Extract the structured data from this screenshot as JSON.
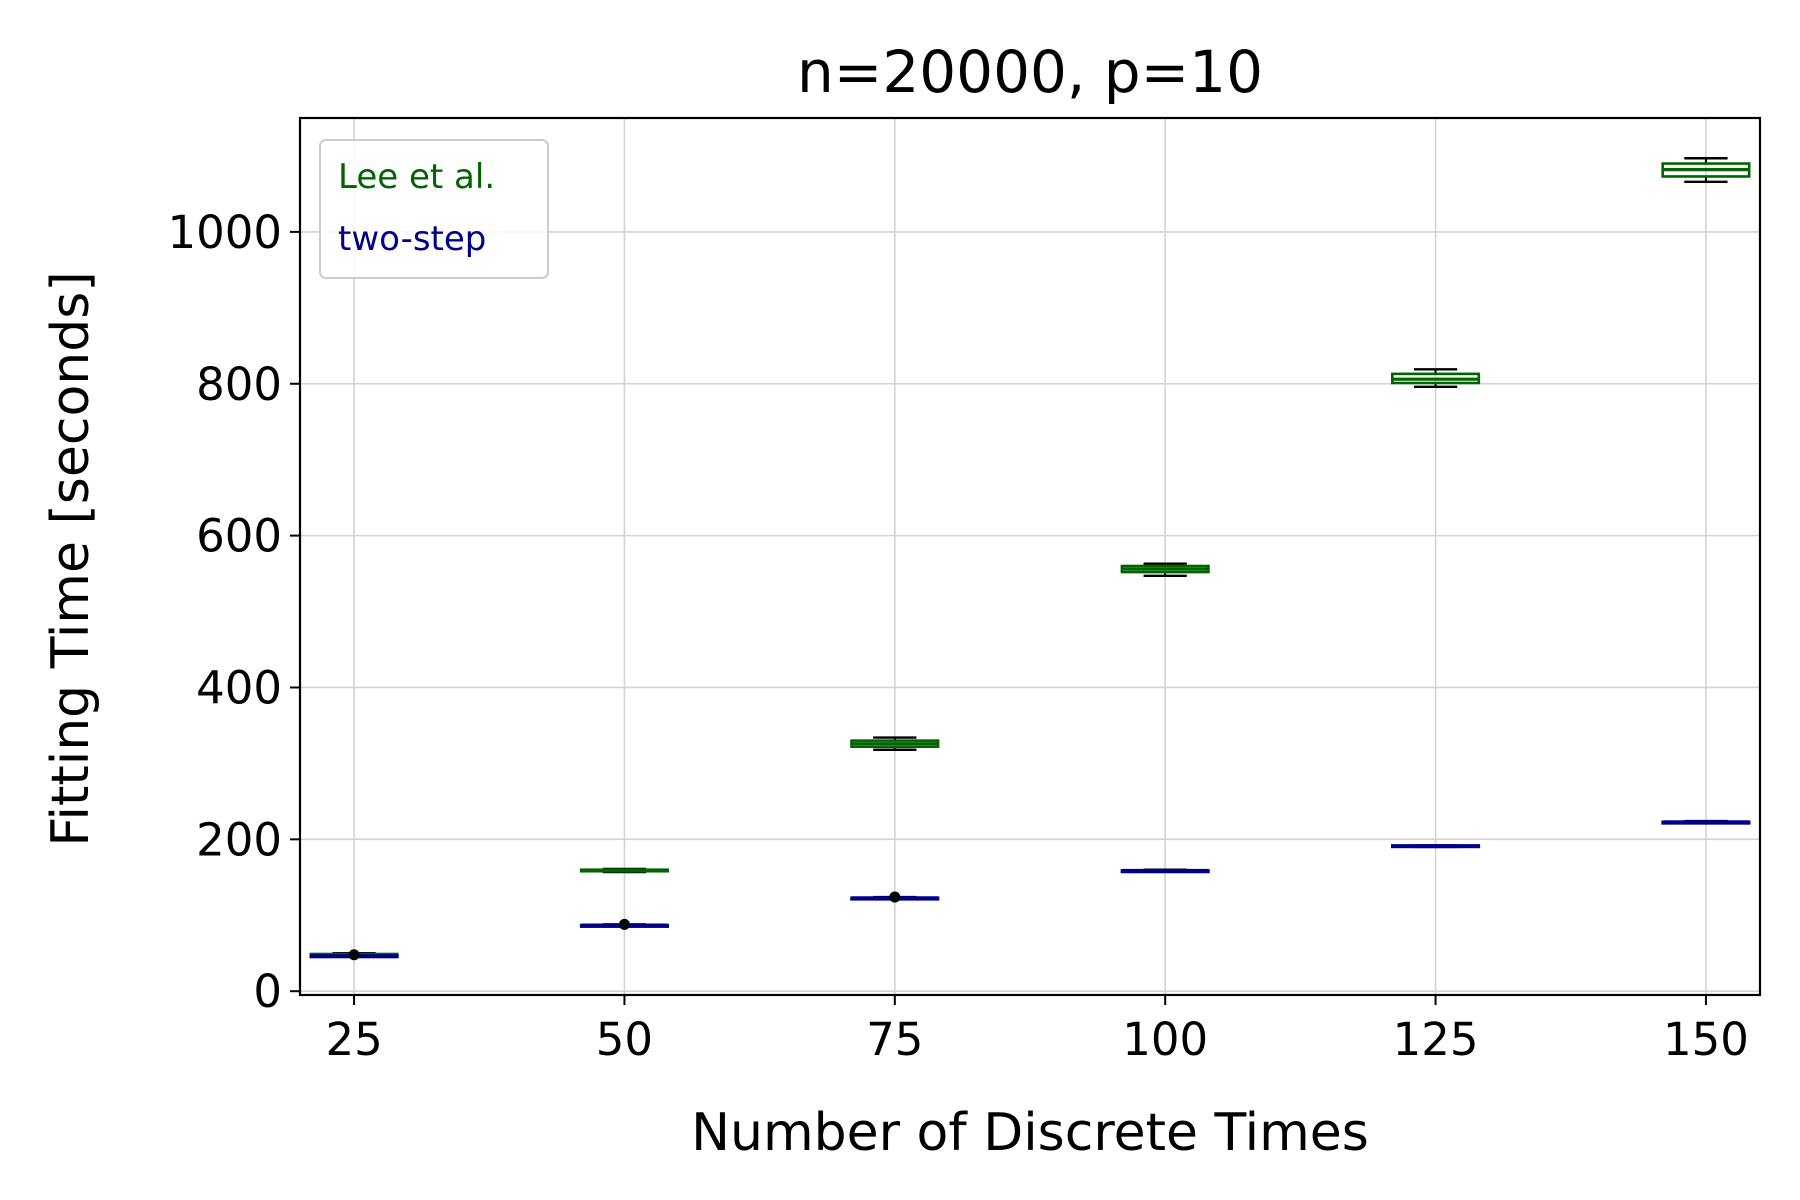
{
  "chart_data": {
    "type": "box",
    "title": "n=20000, p=10",
    "xlabel": "Number of Discrete Times",
    "ylabel": "Fitting Time [seconds]",
    "x_ticks": [
      25,
      50,
      75,
      100,
      125,
      150
    ],
    "y_ticks": [
      0,
      200,
      400,
      600,
      800,
      1000
    ],
    "xlim": [
      20,
      155
    ],
    "ylim": [
      -5,
      1150
    ],
    "grid": true,
    "legend_position": "top-left",
    "series": [
      {
        "name": "Lee et al.",
        "color": "#006400",
        "box_whisker_color": "#000000",
        "points": [
          {
            "x": 25,
            "min": 46,
            "q1": 47,
            "median": 48,
            "q3": 49,
            "max": 50
          },
          {
            "x": 50,
            "min": 157,
            "q1": 158,
            "median": 159,
            "q3": 160,
            "max": 161
          },
          {
            "x": 75,
            "min": 318,
            "q1": 322,
            "median": 326,
            "q3": 330,
            "max": 334
          },
          {
            "x": 100,
            "min": 547,
            "q1": 552,
            "median": 556,
            "q3": 560,
            "max": 563
          },
          {
            "x": 125,
            "min": 796,
            "q1": 801,
            "median": 806,
            "q3": 813,
            "max": 819
          },
          {
            "x": 150,
            "min": 1066,
            "q1": 1073,
            "median": 1082,
            "q3": 1090,
            "max": 1097
          }
        ]
      },
      {
        "name": "two-step",
        "color": "#00008b",
        "box_whisker_color": "#000000",
        "points": [
          {
            "x": 25,
            "min": 46,
            "q1": 46,
            "median": 46,
            "q3": 47,
            "max": 47,
            "outliers": [
              48
            ]
          },
          {
            "x": 50,
            "min": 86,
            "q1": 86,
            "median": 87,
            "q3": 87,
            "max": 88,
            "outliers": [
              88
            ]
          },
          {
            "x": 75,
            "min": 122,
            "q1": 122,
            "median": 123,
            "q3": 123,
            "max": 124,
            "outliers": [
              124
            ]
          },
          {
            "x": 100,
            "min": 158,
            "q1": 158,
            "median": 159,
            "q3": 159,
            "max": 160
          },
          {
            "x": 125,
            "min": 190,
            "q1": 191,
            "median": 191,
            "q3": 192,
            "max": 192
          },
          {
            "x": 150,
            "min": 222,
            "q1": 222,
            "median": 223,
            "q3": 223,
            "max": 224
          }
        ]
      }
    ]
  }
}
